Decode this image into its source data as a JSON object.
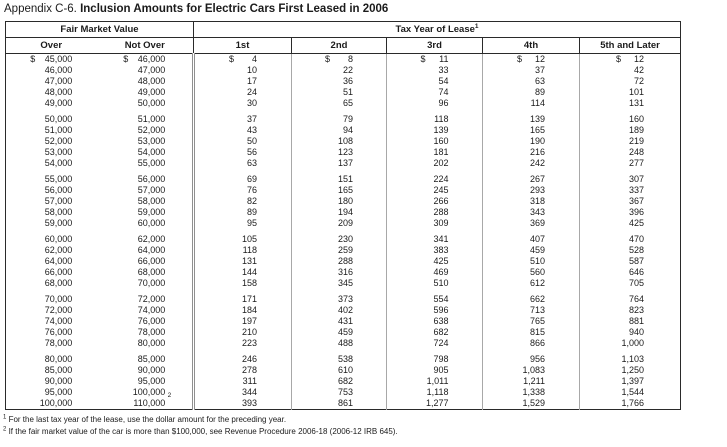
{
  "title": {
    "prefix": "Appendix C-6.",
    "main": "Inclusion Amounts for Electric Cars First Leased in 2006"
  },
  "table": {
    "dollar_sign": "$",
    "header": {
      "fmv": "Fair Market Value",
      "tax_year": "Tax Year of Lease",
      "tax_year_ref": "1",
      "over": "Over",
      "not_over": "Not Over",
      "years": [
        "1st",
        "2nd",
        "3rd",
        "4th",
        "5th and Later"
      ]
    },
    "footnote_cell": {
      "group": 5,
      "row": 4,
      "col": 1,
      "ref": "2"
    },
    "groups": [
      {
        "rows": [
          [
            "45,000",
            "46,000",
            "4",
            "8",
            "11",
            "12",
            "12"
          ],
          [
            "46,000",
            "47,000",
            "10",
            "22",
            "33",
            "37",
            "42"
          ],
          [
            "47,000",
            "48,000",
            "17",
            "36",
            "54",
            "63",
            "72"
          ],
          [
            "48,000",
            "49,000",
            "24",
            "51",
            "74",
            "89",
            "101"
          ],
          [
            "49,000",
            "50,000",
            "30",
            "65",
            "96",
            "114",
            "131"
          ]
        ]
      },
      {
        "rows": [
          [
            "50,000",
            "51,000",
            "37",
            "79",
            "118",
            "139",
            "160"
          ],
          [
            "51,000",
            "52,000",
            "43",
            "94",
            "139",
            "165",
            "189"
          ],
          [
            "52,000",
            "53,000",
            "50",
            "108",
            "160",
            "190",
            "219"
          ],
          [
            "53,000",
            "54,000",
            "56",
            "123",
            "181",
            "216",
            "248"
          ],
          [
            "54,000",
            "55,000",
            "63",
            "137",
            "202",
            "242",
            "277"
          ]
        ]
      },
      {
        "rows": [
          [
            "55,000",
            "56,000",
            "69",
            "151",
            "224",
            "267",
            "307"
          ],
          [
            "56,000",
            "57,000",
            "76",
            "165",
            "245",
            "293",
            "337"
          ],
          [
            "57,000",
            "58,000",
            "82",
            "180",
            "266",
            "318",
            "367"
          ],
          [
            "58,000",
            "59,000",
            "89",
            "194",
            "288",
            "343",
            "396"
          ],
          [
            "59,000",
            "60,000",
            "95",
            "209",
            "309",
            "369",
            "425"
          ]
        ]
      },
      {
        "rows": [
          [
            "60,000",
            "62,000",
            "105",
            "230",
            "341",
            "407",
            "470"
          ],
          [
            "62,000",
            "64,000",
            "118",
            "259",
            "383",
            "459",
            "528"
          ],
          [
            "64,000",
            "66,000",
            "131",
            "288",
            "425",
            "510",
            "587"
          ],
          [
            "66,000",
            "68,000",
            "144",
            "316",
            "469",
            "560",
            "646"
          ],
          [
            "68,000",
            "70,000",
            "158",
            "345",
            "510",
            "612",
            "705"
          ]
        ]
      },
      {
        "rows": [
          [
            "70,000",
            "72,000",
            "171",
            "373",
            "554",
            "662",
            "764"
          ],
          [
            "72,000",
            "74,000",
            "184",
            "402",
            "596",
            "713",
            "823"
          ],
          [
            "74,000",
            "76,000",
            "197",
            "431",
            "638",
            "765",
            "881"
          ],
          [
            "76,000",
            "78,000",
            "210",
            "459",
            "682",
            "815",
            "940"
          ],
          [
            "78,000",
            "80,000",
            "223",
            "488",
            "724",
            "866",
            "1,000"
          ]
        ]
      },
      {
        "rows": [
          [
            "80,000",
            "85,000",
            "246",
            "538",
            "798",
            "956",
            "1,103"
          ],
          [
            "85,000",
            "90,000",
            "278",
            "610",
            "905",
            "1,083",
            "1,250"
          ],
          [
            "90,000",
            "95,000",
            "311",
            "682",
            "1,011",
            "1,211",
            "1,397"
          ],
          [
            "95,000",
            "100,000",
            "344",
            "753",
            "1,118",
            "1,338",
            "1,544"
          ],
          [
            "100,000",
            "110,000",
            "393",
            "861",
            "1,277",
            "1,529",
            "1,766"
          ]
        ]
      }
    ]
  },
  "footnotes": [
    {
      "ref": "1",
      "text": "For the last tax year of the lease, use the dollar amount for the preceding year."
    },
    {
      "ref": "2",
      "text": "If the fair market value of the car is more than $100,000, see Revenue Procedure 2006-18 (2006-12 IRB 645)."
    }
  ]
}
